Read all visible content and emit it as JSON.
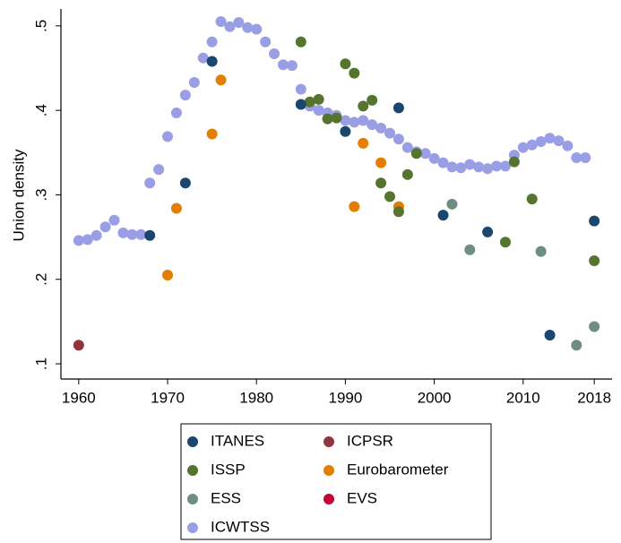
{
  "chart_data": {
    "type": "scatter",
    "ylabel": "Union density",
    "xlim": [
      1958,
      2020
    ],
    "ylim": [
      0.082,
      0.52
    ],
    "xticks": [
      1960,
      1970,
      1980,
      1990,
      2000,
      2010,
      2018
    ],
    "yticks": [
      {
        "value": 0.1,
        "label": ".1"
      },
      {
        "value": 0.2,
        "label": ".2"
      },
      {
        "value": 0.3,
        "label": ".3"
      },
      {
        "value": 0.4,
        "label": ".4"
      },
      {
        "value": 0.5,
        "label": ".5"
      }
    ],
    "grid": false,
    "series": [
      {
        "name": "ITANES",
        "color": "#1a476f",
        "x": [
          1968,
          1972,
          1975,
          1985,
          1990,
          1996,
          2001,
          2006,
          2013,
          2018
        ],
        "values": [
          0.252,
          0.314,
          0.458,
          0.407,
          0.375,
          0.403,
          0.276,
          0.256,
          0.134,
          0.269
        ]
      },
      {
        "name": "ICPSR",
        "color": "#90353b",
        "x": [
          1960
        ],
        "values": [
          0.122
        ]
      },
      {
        "name": "ISSP",
        "color": "#55752f",
        "x": [
          1985,
          1986,
          1987,
          1988,
          1989,
          1990,
          1991,
          1992,
          1993,
          1994,
          1995,
          1996,
          1997,
          1998,
          2008,
          2009,
          2011,
          2018
        ],
        "values": [
          0.481,
          0.41,
          0.413,
          0.39,
          0.391,
          0.455,
          0.444,
          0.405,
          0.412,
          0.314,
          0.298,
          0.28,
          0.324,
          0.349,
          0.244,
          0.339,
          0.295,
          0.222
        ]
      },
      {
        "name": "Eurobarometer",
        "color": "#e37e00",
        "x": [
          1970,
          1971,
          1975,
          1976,
          1991,
          1992,
          1994,
          1996
        ],
        "values": [
          0.205,
          0.284,
          0.372,
          0.436,
          0.286,
          0.361,
          0.338,
          0.286
        ]
      },
      {
        "name": "ESS",
        "color": "#6e8e84",
        "x": [
          2002,
          2004,
          2012,
          2016,
          2018
        ],
        "values": [
          0.289,
          0.235,
          0.233,
          0.122,
          0.144
        ]
      },
      {
        "name": "EVS",
        "color": "#c10534",
        "x": [],
        "values": []
      },
      {
        "name": "ICWTSS",
        "color": "#9a9ee5",
        "x": [
          1960,
          1961,
          1962,
          1963,
          1964,
          1965,
          1966,
          1967,
          1968,
          1969,
          1970,
          1971,
          1972,
          1973,
          1974,
          1975,
          1976,
          1977,
          1978,
          1979,
          1980,
          1981,
          1982,
          1983,
          1984,
          1985,
          1986,
          1987,
          1988,
          1989,
          1990,
          1991,
          1992,
          1993,
          1994,
          1995,
          1996,
          1997,
          1998,
          1999,
          2000,
          2001,
          2002,
          2003,
          2004,
          2005,
          2006,
          2007,
          2008,
          2009,
          2010,
          2011,
          2012,
          2013,
          2014,
          2015,
          2016,
          2017
        ],
        "values": [
          0.246,
          0.247,
          0.252,
          0.262,
          0.27,
          0.255,
          0.253,
          0.253,
          0.314,
          0.33,
          0.369,
          0.397,
          0.418,
          0.433,
          0.462,
          0.481,
          0.505,
          0.499,
          0.504,
          0.498,
          0.496,
          0.481,
          0.467,
          0.454,
          0.453,
          0.425,
          0.405,
          0.4,
          0.397,
          0.394,
          0.388,
          0.386,
          0.388,
          0.383,
          0.379,
          0.373,
          0.366,
          0.356,
          0.351,
          0.349,
          0.343,
          0.338,
          0.333,
          0.332,
          0.336,
          0.333,
          0.331,
          0.334,
          0.334,
          0.347,
          0.356,
          0.359,
          0.363,
          0.367,
          0.364,
          0.358,
          0.344,
          0.344
        ]
      }
    ]
  }
}
